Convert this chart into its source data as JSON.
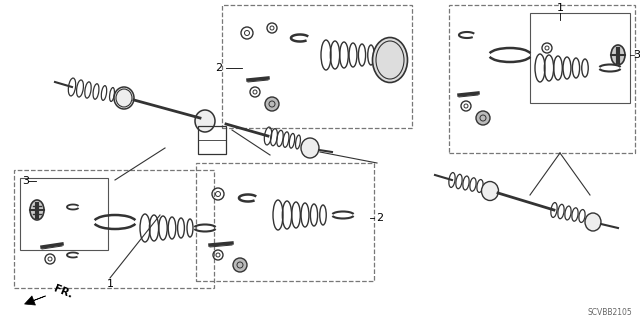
{
  "bg_color": "#ffffff",
  "diagram_code": "SCVBB2105",
  "label_1_left": "1",
  "label_1_right": "1",
  "label_2_top": "2",
  "label_2_bottom": "2",
  "label_3_left_inner": "3",
  "label_3_right_inner": "3",
  "fr_label": "FR.",
  "line_color": "#000000",
  "dark_gray": "#333333",
  "mid_gray": "#666666",
  "light_gray": "#aaaaaa",
  "box_dash_color": "#888888",
  "box_solid_color": "#555555"
}
